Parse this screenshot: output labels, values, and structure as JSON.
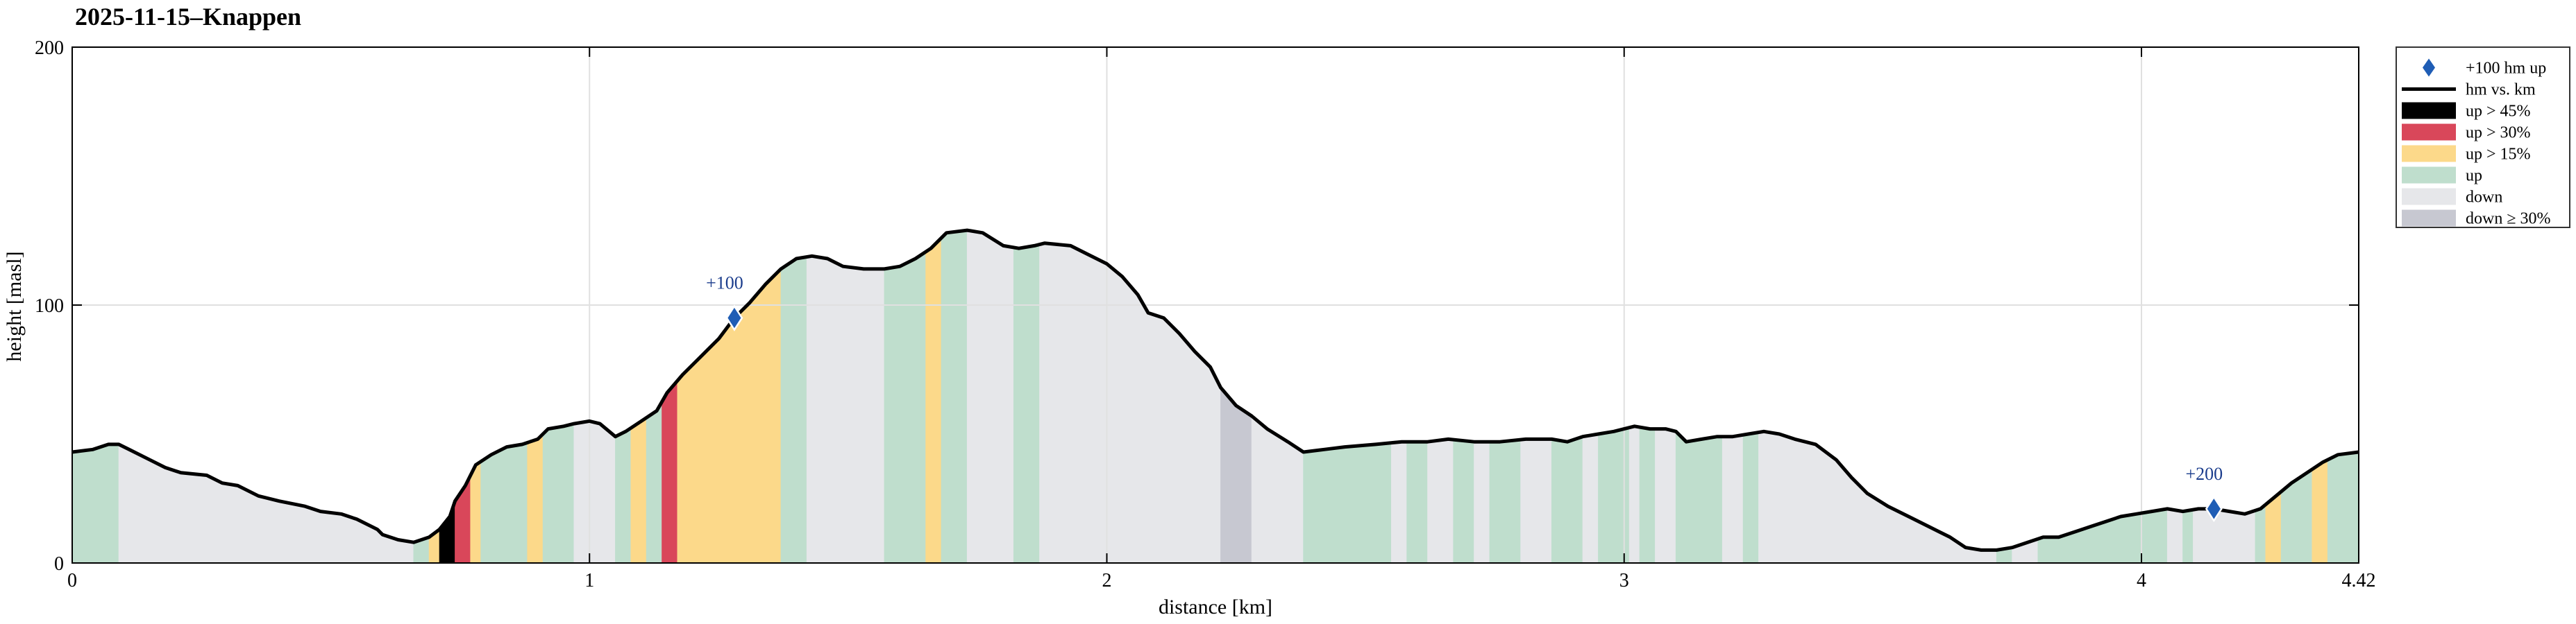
{
  "chart_data": {
    "type": "area",
    "title": "2025-11-15–Knappen",
    "xlabel": "distance [km]",
    "ylabel": "height [masl]",
    "xlim": [
      0,
      4.42
    ],
    "ylim": [
      0,
      200
    ],
    "xticks": [
      "0",
      "1",
      "2",
      "3",
      "4",
      "4.42"
    ],
    "xtick_values": [
      0,
      1,
      2,
      3,
      4,
      4.42
    ],
    "yticks": [
      "0",
      "100",
      "200"
    ],
    "ytick_values": [
      0,
      100,
      200
    ],
    "grid": true,
    "legend_position": "outside top-right",
    "colors": {
      "line": "#000000",
      "steep45": "#000000",
      "steep30": "#d9475a",
      "steep15": "#fcd98a",
      "up": "#bfdecd",
      "down": "#e6e7ea",
      "down30": "#c7c8d1",
      "marker": "#1f5db5",
      "grid": "#e0e0e0"
    },
    "legend": [
      {
        "label": "+100 hm up",
        "kind": "marker"
      },
      {
        "label": "hm vs. km",
        "kind": "line"
      },
      {
        "label": "up  > 45%",
        "kind": "steep45"
      },
      {
        "label": "up  > 30%",
        "kind": "steep30"
      },
      {
        "label": "up  > 15%",
        "kind": "steep15"
      },
      {
        "label": "up",
        "kind": "up"
      },
      {
        "label": "down",
        "kind": "down"
      },
      {
        "label": "down  ≥ 30%",
        "kind": "down30"
      }
    ],
    "profile": [
      [
        0.0,
        43
      ],
      [
        0.04,
        44
      ],
      [
        0.07,
        46
      ],
      [
        0.09,
        46
      ],
      [
        0.11,
        44
      ],
      [
        0.15,
        40
      ],
      [
        0.18,
        37
      ],
      [
        0.21,
        35
      ],
      [
        0.26,
        34
      ],
      [
        0.29,
        31
      ],
      [
        0.32,
        30
      ],
      [
        0.36,
        26
      ],
      [
        0.4,
        24
      ],
      [
        0.45,
        22
      ],
      [
        0.48,
        20
      ],
      [
        0.52,
        19
      ],
      [
        0.55,
        17
      ],
      [
        0.59,
        13
      ],
      [
        0.6,
        11
      ],
      [
        0.63,
        9
      ],
      [
        0.66,
        8
      ],
      [
        0.69,
        10
      ],
      [
        0.71,
        13
      ],
      [
        0.73,
        18
      ],
      [
        0.74,
        24
      ],
      [
        0.76,
        30
      ],
      [
        0.78,
        38
      ],
      [
        0.81,
        42
      ],
      [
        0.84,
        45
      ],
      [
        0.87,
        46
      ],
      [
        0.9,
        48
      ],
      [
        0.92,
        52
      ],
      [
        0.95,
        53
      ],
      [
        0.97,
        54
      ],
      [
        1.0,
        55
      ],
      [
        1.02,
        54
      ],
      [
        1.05,
        49
      ],
      [
        1.07,
        51
      ],
      [
        1.1,
        55
      ],
      [
        1.13,
        59
      ],
      [
        1.15,
        66
      ],
      [
        1.18,
        73
      ],
      [
        1.21,
        79
      ],
      [
        1.25,
        87
      ],
      [
        1.28,
        95
      ],
      [
        1.31,
        101
      ],
      [
        1.34,
        108
      ],
      [
        1.37,
        114
      ],
      [
        1.4,
        118
      ],
      [
        1.43,
        119
      ],
      [
        1.46,
        118
      ],
      [
        1.49,
        115
      ],
      [
        1.53,
        114
      ],
      [
        1.57,
        114
      ],
      [
        1.6,
        115
      ],
      [
        1.63,
        118
      ],
      [
        1.66,
        122
      ],
      [
        1.69,
        128
      ],
      [
        1.73,
        129
      ],
      [
        1.76,
        128
      ],
      [
        1.8,
        123
      ],
      [
        1.83,
        122
      ],
      [
        1.86,
        123
      ],
      [
        1.88,
        124
      ],
      [
        1.93,
        123
      ],
      [
        1.96,
        120
      ],
      [
        2.0,
        116
      ],
      [
        2.03,
        111
      ],
      [
        2.06,
        104
      ],
      [
        2.08,
        97
      ],
      [
        2.11,
        95
      ],
      [
        2.14,
        89
      ],
      [
        2.17,
        82
      ],
      [
        2.2,
        76
      ],
      [
        2.22,
        68
      ],
      [
        2.25,
        61
      ],
      [
        2.28,
        57
      ],
      [
        2.31,
        52
      ],
      [
        2.35,
        47
      ],
      [
        2.38,
        43
      ],
      [
        2.42,
        44
      ],
      [
        2.46,
        45
      ],
      [
        2.52,
        46
      ],
      [
        2.57,
        47
      ],
      [
        2.62,
        47
      ],
      [
        2.66,
        48
      ],
      [
        2.71,
        47
      ],
      [
        2.76,
        47
      ],
      [
        2.81,
        48
      ],
      [
        2.86,
        48
      ],
      [
        2.89,
        47
      ],
      [
        2.92,
        49
      ],
      [
        2.95,
        50
      ],
      [
        2.98,
        51
      ],
      [
        3.0,
        52
      ],
      [
        3.02,
        53
      ],
      [
        3.05,
        52
      ],
      [
        3.08,
        52
      ],
      [
        3.1,
        51
      ],
      [
        3.12,
        47
      ],
      [
        3.15,
        48
      ],
      [
        3.18,
        49
      ],
      [
        3.21,
        49
      ],
      [
        3.24,
        50
      ],
      [
        3.27,
        51
      ],
      [
        3.3,
        50
      ],
      [
        3.33,
        48
      ],
      [
        3.37,
        46
      ],
      [
        3.41,
        40
      ],
      [
        3.44,
        33
      ],
      [
        3.47,
        27
      ],
      [
        3.51,
        22
      ],
      [
        3.55,
        18
      ],
      [
        3.59,
        14
      ],
      [
        3.63,
        10
      ],
      [
        3.66,
        6
      ],
      [
        3.69,
        5
      ],
      [
        3.72,
        5
      ],
      [
        3.75,
        6
      ],
      [
        3.78,
        8
      ],
      [
        3.81,
        10
      ],
      [
        3.84,
        10
      ],
      [
        3.87,
        12
      ],
      [
        3.9,
        14
      ],
      [
        3.93,
        16
      ],
      [
        3.96,
        18
      ],
      [
        3.99,
        19
      ],
      [
        4.02,
        20
      ],
      [
        4.05,
        21
      ],
      [
        4.08,
        20
      ],
      [
        4.11,
        21
      ],
      [
        4.14,
        21
      ],
      [
        4.17,
        20
      ],
      [
        4.2,
        19
      ],
      [
        4.23,
        21
      ],
      [
        4.26,
        26
      ],
      [
        4.29,
        31
      ],
      [
        4.32,
        35
      ],
      [
        4.35,
        39
      ],
      [
        4.38,
        42
      ],
      [
        4.42,
        43
      ]
    ],
    "segments": [
      [
        0.0,
        0.09,
        "up"
      ],
      [
        0.09,
        0.66,
        "down"
      ],
      [
        0.66,
        0.69,
        "up"
      ],
      [
        0.69,
        0.71,
        "steep15"
      ],
      [
        0.71,
        0.74,
        "steep45"
      ],
      [
        0.74,
        0.77,
        "steep30"
      ],
      [
        0.77,
        0.79,
        "steep15"
      ],
      [
        0.79,
        0.88,
        "up"
      ],
      [
        0.88,
        0.91,
        "steep15"
      ],
      [
        0.91,
        0.97,
        "up"
      ],
      [
        0.97,
        1.05,
        "down"
      ],
      [
        1.05,
        1.08,
        "up"
      ],
      [
        1.08,
        1.11,
        "steep15"
      ],
      [
        1.11,
        1.14,
        "up"
      ],
      [
        1.14,
        1.17,
        "steep30"
      ],
      [
        1.17,
        1.37,
        "steep15"
      ],
      [
        1.37,
        1.42,
        "up"
      ],
      [
        1.42,
        1.57,
        "down"
      ],
      [
        1.57,
        1.65,
        "up"
      ],
      [
        1.65,
        1.68,
        "steep15"
      ],
      [
        1.68,
        1.73,
        "up"
      ],
      [
        1.73,
        1.82,
        "down"
      ],
      [
        1.82,
        1.87,
        "up"
      ],
      [
        1.87,
        2.22,
        "down"
      ],
      [
        2.22,
        2.28,
        "down30"
      ],
      [
        2.28,
        2.38,
        "down"
      ],
      [
        2.38,
        2.55,
        "up"
      ],
      [
        2.55,
        2.58,
        "down"
      ],
      [
        2.58,
        2.62,
        "up"
      ],
      [
        2.62,
        2.67,
        "down"
      ],
      [
        2.67,
        2.71,
        "up"
      ],
      [
        2.71,
        2.74,
        "down"
      ],
      [
        2.74,
        2.8,
        "up"
      ],
      [
        2.8,
        2.86,
        "down"
      ],
      [
        2.86,
        2.92,
        "up"
      ],
      [
        2.92,
        2.95,
        "down"
      ],
      [
        2.95,
        3.01,
        "up"
      ],
      [
        3.01,
        3.03,
        "down"
      ],
      [
        3.03,
        3.06,
        "up"
      ],
      [
        3.06,
        3.1,
        "down"
      ],
      [
        3.1,
        3.19,
        "up"
      ],
      [
        3.19,
        3.23,
        "down"
      ],
      [
        3.23,
        3.26,
        "up"
      ],
      [
        3.26,
        3.72,
        "down"
      ],
      [
        3.72,
        3.75,
        "up"
      ],
      [
        3.75,
        3.8,
        "down"
      ],
      [
        3.8,
        4.05,
        "up"
      ],
      [
        4.05,
        4.08,
        "down"
      ],
      [
        4.08,
        4.1,
        "up"
      ],
      [
        4.1,
        4.22,
        "down"
      ],
      [
        4.22,
        4.24,
        "up"
      ],
      [
        4.24,
        4.27,
        "steep15"
      ],
      [
        4.27,
        4.33,
        "up"
      ],
      [
        4.33,
        4.36,
        "steep15"
      ],
      [
        4.36,
        4.42,
        "up"
      ]
    ],
    "markers": [
      {
        "label": "+100",
        "x": 1.28,
        "y": 95
      },
      {
        "label": "+200",
        "x": 4.14,
        "y": 21
      }
    ]
  }
}
